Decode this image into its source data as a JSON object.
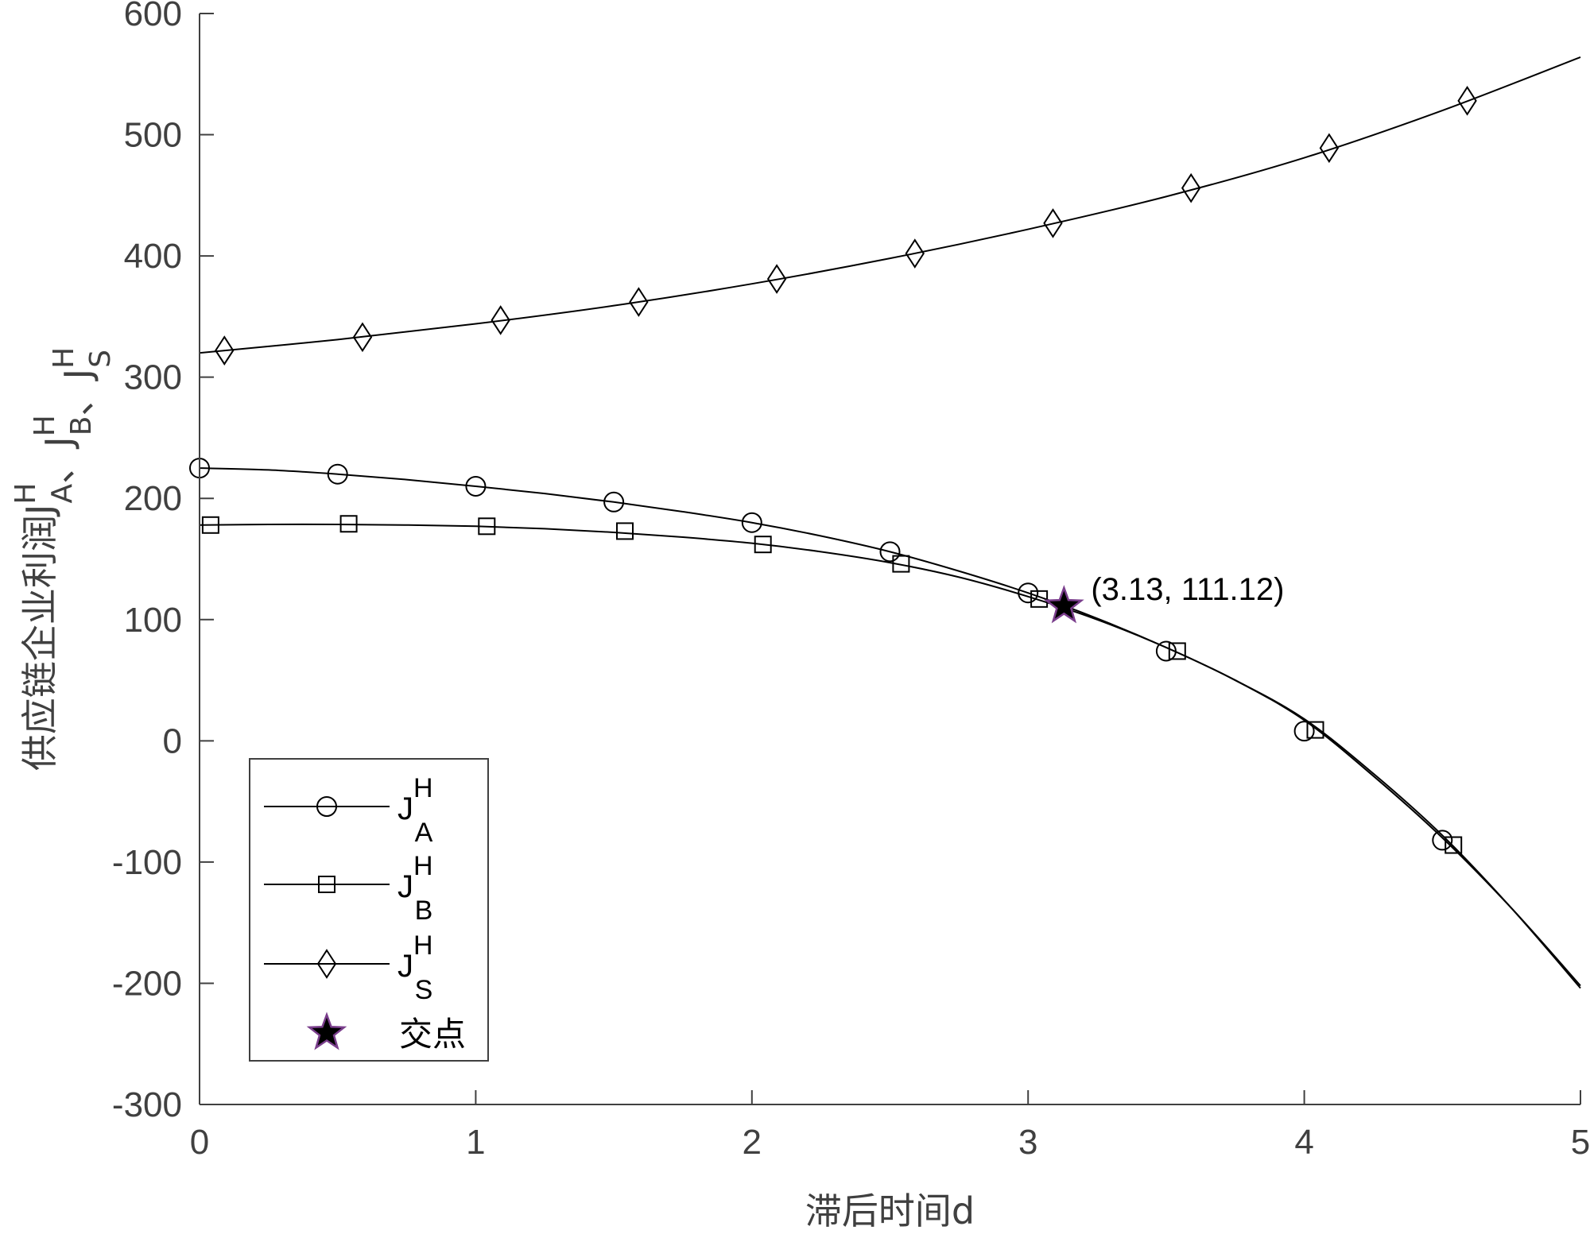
{
  "chart_data": {
    "type": "line",
    "xlabel": "滞后时间d",
    "ylabel": {
      "prefix": "供应链企业利润",
      "parts": [
        {
          "base": "J",
          "sup": "H",
          "sub": "A"
        },
        {
          "sep": "、"
        },
        {
          "base": "J",
          "sup": "H",
          "sub": "B"
        },
        {
          "sep": "、"
        },
        {
          "base": "J",
          "sup": "H",
          "sub": "S"
        }
      ]
    },
    "xlim": [
      0,
      5
    ],
    "ylim": [
      -300,
      600
    ],
    "xticks": [
      0,
      1,
      2,
      3,
      4,
      5
    ],
    "yticks": [
      -300,
      -200,
      -100,
      0,
      100,
      200,
      300,
      400,
      500,
      600
    ],
    "grid": false,
    "legend_position": "bottom-left",
    "series": [
      {
        "name": "J^H_A",
        "legend": {
          "base": "J",
          "sup": "H",
          "sub": "A"
        },
        "marker": "circle",
        "x": [
          0,
          0.25,
          0.5,
          0.75,
          1,
          1.25,
          1.5,
          1.75,
          2,
          2.25,
          2.5,
          2.75,
          3,
          3.25,
          3.5,
          3.75,
          4,
          4.25,
          4.5,
          4.75,
          5
        ],
        "y": [
          225,
          223.5,
          220,
          215.5,
          210,
          204,
          197,
          189,
          180,
          169,
          156,
          140,
          122,
          101,
          77,
          50,
          17,
          -29,
          -80,
          -138,
          -202
        ],
        "marker_x": [
          0,
          0.5,
          1,
          1.5,
          2,
          2.5,
          3,
          3.5,
          4,
          4.5
        ],
        "marker_y": [
          225,
          220,
          210,
          197,
          180,
          156,
          122,
          74,
          8,
          -82
        ]
      },
      {
        "name": "J^H_B",
        "legend": {
          "base": "J",
          "sup": "H",
          "sub": "B"
        },
        "marker": "square",
        "x": [
          0,
          0.25,
          0.5,
          0.75,
          1,
          1.25,
          1.5,
          1.75,
          2,
          2.25,
          2.5,
          2.75,
          3,
          3.25,
          3.5,
          3.75,
          4,
          4.25,
          4.5,
          4.75,
          5
        ],
        "y": [
          178,
          178.5,
          178.5,
          178,
          177,
          175,
          172,
          168,
          163,
          156,
          147,
          135,
          119,
          100,
          77,
          50,
          18,
          -27,
          -78,
          -138,
          -204
        ],
        "marker_x": [
          0.04,
          0.54,
          1.04,
          1.54,
          2.04,
          2.54,
          3.04,
          3.54,
          4.04,
          4.54
        ],
        "marker_y": [
          178,
          179,
          177,
          173,
          162,
          146,
          117,
          74,
          9,
          -86
        ]
      },
      {
        "name": "J^H_S",
        "legend": {
          "base": "J",
          "sup": "H",
          "sub": "S"
        },
        "marker": "diamond",
        "x": [
          0,
          0.5,
          1,
          1.5,
          2,
          2.5,
          3,
          3.5,
          4,
          4.5,
          5
        ],
        "y": [
          320,
          331,
          344,
          359,
          377,
          398,
          422,
          449,
          481,
          520,
          564
        ],
        "marker_x": [
          0.09,
          0.59,
          1.09,
          1.59,
          2.09,
          2.59,
          3.09,
          3.59,
          4.09,
          4.59
        ],
        "marker_y": [
          322,
          333,
          347,
          362,
          381,
          402,
          427,
          456,
          489,
          528
        ]
      }
    ],
    "intersection": {
      "label": "交点",
      "x": 3.13,
      "y": 111.12,
      "annotation": "(3.13, 111.12)",
      "marker": "star",
      "color": "#000000",
      "edge_color": "#7a3e8c"
    },
    "line_color": "#000000",
    "axis_color": "#404040"
  }
}
